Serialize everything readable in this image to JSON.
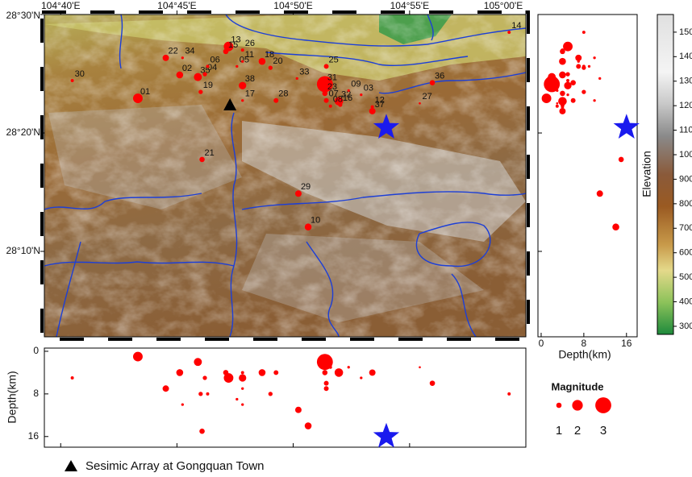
{
  "map": {
    "xlim": [
      104.655,
      105.0
    ],
    "ylim": [
      28.0465,
      28.5
    ],
    "xticks": [
      {
        "value": 104.6667,
        "label": "104°40'E"
      },
      {
        "value": 104.75,
        "label": "104°45'E"
      },
      {
        "value": 104.8333,
        "label": "104°50'E"
      },
      {
        "value": 104.9167,
        "label": "104°55'E"
      },
      {
        "value": 105.0,
        "label": "105°00'E"
      }
    ],
    "yticks": [
      {
        "value": 28.5,
        "label": "28°30'N"
      },
      {
        "value": 28.3333,
        "label": "28°20'N"
      },
      {
        "value": 28.1667,
        "label": "28°10'N"
      }
    ],
    "events": [
      {
        "label": "01",
        "lon": 104.722,
        "lat": 28.382,
        "depth": 1,
        "magnitude": 1.8
      },
      {
        "label": "30",
        "lon": 104.675,
        "lat": 28.407,
        "depth": 5,
        "magnitude": 0.6
      },
      {
        "label": "22",
        "lon": 104.742,
        "lat": 28.439,
        "depth": 7,
        "magnitude": 1.2
      },
      {
        "label": "34",
        "lon": 104.754,
        "lat": 28.439,
        "depth": 10,
        "magnitude": 0.5
      },
      {
        "label": "02",
        "lon": 104.752,
        "lat": 28.415,
        "depth": 4,
        "magnitude": 1.3
      },
      {
        "label": "35",
        "lon": 104.765,
        "lat": 28.412,
        "depth": 2,
        "magnitude": 1.5
      },
      {
        "label": "04",
        "lon": 104.77,
        "lat": 28.416,
        "depth": 5,
        "magnitude": 0.8
      },
      {
        "label": "06",
        "lon": 104.772,
        "lat": 28.427,
        "depth": 8,
        "magnitude": 0.6
      },
      {
        "label": "19",
        "lon": 104.767,
        "lat": 28.391,
        "depth": 8,
        "magnitude": 0.8
      },
      {
        "label": "13",
        "lon": 104.787,
        "lat": 28.455,
        "depth": 5,
        "magnitude": 1.8
      },
      {
        "label": "15",
        "lon": 104.785,
        "lat": 28.448,
        "depth": 4,
        "magnitude": 1.0
      },
      {
        "label": "26",
        "lon": 104.797,
        "lat": 28.45,
        "depth": 4,
        "magnitude": 0.6
      },
      {
        "label": "05",
        "lon": 104.793,
        "lat": 28.427,
        "depth": 9,
        "magnitude": 0.5
      },
      {
        "label": "11",
        "lon": 104.797,
        "lat": 28.434,
        "depth": 7,
        "magnitude": 0.5
      },
      {
        "label": "18",
        "lon": 104.811,
        "lat": 28.434,
        "depth": 4,
        "magnitude": 1.3
      },
      {
        "label": "20",
        "lon": 104.817,
        "lat": 28.425,
        "depth": 8,
        "magnitude": 0.8
      },
      {
        "label": "38",
        "lon": 104.797,
        "lat": 28.4,
        "depth": 5,
        "magnitude": 1.4
      },
      {
        "label": "17",
        "lon": 104.797,
        "lat": 28.379,
        "depth": 10,
        "magnitude": 0.5
      },
      {
        "label": "28",
        "lon": 104.821,
        "lat": 28.379,
        "depth": 4,
        "magnitude": 0.9
      },
      {
        "label": "33",
        "lon": 104.836,
        "lat": 28.41,
        "depth": 11,
        "magnitude": 0.5
      },
      {
        "label": "25",
        "lon": 104.857,
        "lat": 28.427,
        "depth": 7,
        "magnitude": 0.9
      },
      {
        "label": "31",
        "lon": 104.856,
        "lat": 28.402,
        "depth": 2,
        "magnitude": 3.0
      },
      {
        "label": "23",
        "lon": 104.856,
        "lat": 28.389,
        "depth": 4,
        "magnitude": 1.0
      },
      {
        "label": "07",
        "lon": 104.857,
        "lat": 28.379,
        "depth": 6,
        "magnitude": 0.9
      },
      {
        "label": "32",
        "lon": 104.866,
        "lat": 28.378,
        "depth": 4,
        "magnitude": 1.6
      },
      {
        "label": "08",
        "lon": 104.86,
        "lat": 28.371,
        "depth": 3,
        "magnitude": 0.6
      },
      {
        "label": "16",
        "lon": 104.867,
        "lat": 28.373,
        "depth": 4,
        "magnitude": 0.8
      },
      {
        "label": "09",
        "lon": 104.873,
        "lat": 28.393,
        "depth": 3,
        "magnitude": 0.5
      },
      {
        "label": "03",
        "lon": 104.882,
        "lat": 28.387,
        "depth": 5,
        "magnitude": 0.5
      },
      {
        "label": "12",
        "lon": 104.89,
        "lat": 28.37,
        "depth": 4,
        "magnitude": 0.6
      },
      {
        "label": "37",
        "lon": 104.89,
        "lat": 28.364,
        "depth": 4,
        "magnitude": 1.2
      },
      {
        "label": "27",
        "lon": 104.924,
        "lat": 28.375,
        "depth": 3,
        "magnitude": 0.4
      },
      {
        "label": "36",
        "lon": 104.933,
        "lat": 28.404,
        "depth": 6,
        "magnitude": 1.0
      },
      {
        "label": "14",
        "lon": 104.988,
        "lat": 28.475,
        "depth": 8,
        "magnitude": 0.6
      },
      {
        "label": "21",
        "lon": 104.768,
        "lat": 28.296,
        "depth": 15,
        "magnitude": 1.0
      },
      {
        "label": "29",
        "lon": 104.837,
        "lat": 28.248,
        "depth": 11,
        "magnitude": 1.2
      },
      {
        "label": "10",
        "lon": 104.844,
        "lat": 28.201,
        "depth": 14,
        "magnitude": 1.3
      }
    ],
    "mainshock": {
      "lon": 104.9,
      "lat": 28.341,
      "depth": 16
    },
    "array": {
      "lon": 104.788,
      "lat": 28.373,
      "label": "Sesimic Array at Gongquan Town"
    }
  },
  "depth_axis": {
    "label": "Depth(km)",
    "lim": [
      -0.6,
      18
    ],
    "ticks": [
      0,
      8,
      16
    ]
  },
  "elevation": {
    "label": "Elevation",
    "lim": [
      267,
      1572
    ],
    "ticks": [
      300,
      400,
      500,
      600,
      700,
      800,
      900,
      1000,
      1100,
      1200,
      1300,
      1400,
      1500
    ]
  },
  "magnitude_legend": {
    "title": "Magnitude",
    "sizes": [
      1,
      2,
      3
    ]
  }
}
